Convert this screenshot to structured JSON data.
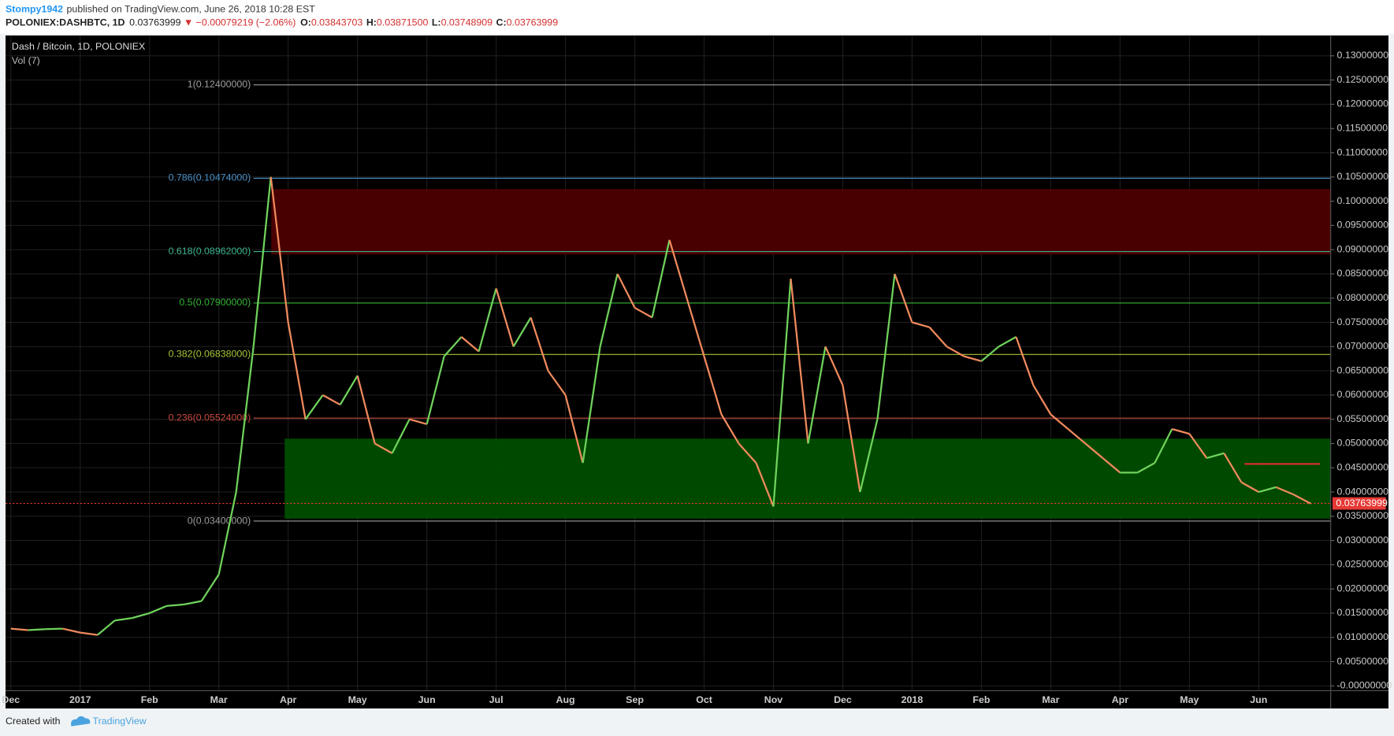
{
  "header": {
    "author": "Stompy1942",
    "published": "published on TradingView.com, June 26, 2018 10:28 EST",
    "symbol": "POLONIEX:DASHBTC, 1D",
    "last": "0.03763999",
    "change": "▼ −0.00079219 (−2.06%)",
    "o_key": "O:",
    "o": "0.03843703",
    "h_key": "H:",
    "h": "0.03871500",
    "l_key": "L:",
    "l": "0.03748909",
    "c_key": "C:",
    "c": "0.03763999"
  },
  "footer": {
    "created": "Created with",
    "brand": "TradingView"
  },
  "chart_data": {
    "type": "line",
    "title": "Dash / Bitcoin, 1D, POLONIEX",
    "subtitle": "Vol (7)",
    "up_color": "#6fd35c",
    "down_color": "#f08a5d",
    "categories": [
      "Dec",
      null,
      null,
      null,
      "2017",
      null,
      null,
      null,
      "Feb",
      null,
      null,
      null,
      "Mar",
      null,
      null,
      null,
      "Apr",
      null,
      null,
      null,
      "May",
      null,
      null,
      null,
      "Jun",
      null,
      null,
      null,
      "Jul",
      null,
      null,
      null,
      "Aug",
      null,
      null,
      null,
      "Sep",
      null,
      null,
      null,
      "Oct",
      null,
      null,
      null,
      "Nov",
      null,
      null,
      null,
      "Dec",
      null,
      null,
      null,
      "2018",
      null,
      null,
      null,
      "Feb",
      null,
      null,
      null,
      "Mar",
      null,
      null,
      null,
      "Apr",
      null,
      null,
      null,
      "May",
      null,
      null,
      null,
      "Jun",
      null,
      null,
      null
    ],
    "values": [
      0.0118,
      0.0115,
      0.0117,
      0.0118,
      0.011,
      0.0105,
      0.0135,
      0.014,
      0.015,
      0.0165,
      0.0168,
      0.0175,
      0.023,
      0.04,
      0.07,
      0.105,
      0.075,
      0.055,
      0.06,
      0.058,
      0.064,
      0.05,
      0.048,
      0.055,
      0.054,
      0.068,
      0.072,
      0.069,
      0.082,
      0.07,
      0.076,
      0.065,
      0.06,
      0.046,
      0.07,
      0.085,
      0.078,
      0.076,
      0.092,
      0.08,
      0.068,
      0.056,
      0.05,
      0.046,
      0.037,
      0.084,
      0.05,
      0.07,
      0.062,
      0.04,
      0.055,
      0.085,
      0.075,
      0.074,
      0.07,
      0.068,
      0.067,
      0.07,
      0.072,
      0.062,
      0.056,
      0.053,
      0.05,
      0.047,
      0.044,
      0.044,
      0.046,
      0.053,
      0.052,
      0.047,
      0.048,
      0.042,
      0.04,
      0.041,
      0.0395,
      0.0376
    ],
    "ylim": [
      -0.001,
      0.134
    ],
    "yticks": [
      {
        "value": 0.13,
        "label": "0.13000000"
      },
      {
        "value": 0.125,
        "label": "0.12500000"
      },
      {
        "value": 0.12,
        "label": "0.12000000"
      },
      {
        "value": 0.115,
        "label": "0.11500000"
      },
      {
        "value": 0.11,
        "label": "0.11000000"
      },
      {
        "value": 0.105,
        "label": "0.10500000"
      },
      {
        "value": 0.1,
        "label": "0.10000000"
      },
      {
        "value": 0.095,
        "label": "0.09500000"
      },
      {
        "value": 0.09,
        "label": "0.09000000"
      },
      {
        "value": 0.085,
        "label": "0.08500000"
      },
      {
        "value": 0.08,
        "label": "0.08000000"
      },
      {
        "value": 0.075,
        "label": "0.07500000"
      },
      {
        "value": 0.07,
        "label": "0.07000000"
      },
      {
        "value": 0.065,
        "label": "0.06500000"
      },
      {
        "value": 0.06,
        "label": "0.06000000"
      },
      {
        "value": 0.055,
        "label": "0.05500000"
      },
      {
        "value": 0.05,
        "label": "0.05000000"
      },
      {
        "value": 0.045,
        "label": "0.04500000"
      },
      {
        "value": 0.04,
        "label": "0.04000000"
      },
      {
        "value": 0.035,
        "label": "0.03500000"
      },
      {
        "value": 0.03,
        "label": "0.03000000"
      },
      {
        "value": 0.025,
        "label": "0.02500000"
      },
      {
        "value": 0.02,
        "label": "0.02000000"
      },
      {
        "value": 0.015,
        "label": "0.01500000"
      },
      {
        "value": 0.01,
        "label": "0.01000000"
      },
      {
        "value": 0.005,
        "label": "0.00500000"
      },
      {
        "value": 0,
        "label": "-0.00000000"
      }
    ],
    "grid": true,
    "fib": [
      {
        "value": 0.124,
        "label": "1(0.12400000)",
        "color": "#9e9e9e"
      },
      {
        "value": 0.10474,
        "label": "0.786(0.10474000)",
        "color": "#4a90c8"
      },
      {
        "value": 0.08962,
        "label": "0.618(0.08962000)",
        "color": "#3cb38f"
      },
      {
        "value": 0.079,
        "label": "0.5(0.07900000)",
        "color": "#33b534"
      },
      {
        "value": 0.06838,
        "label": "0.382(0.06838000)",
        "color": "#a5c536"
      },
      {
        "value": 0.05524,
        "label": "0.236(0.05524000)",
        "color": "#c9483e"
      },
      {
        "value": 0.034,
        "label": "0(0.03400000)",
        "color": "#9e9e9e"
      }
    ],
    "zones": [
      {
        "from": 0.089,
        "to": 0.1025,
        "color": "#4d0000"
      },
      {
        "from": 0.0345,
        "to": 0.051,
        "color": "#004d00"
      }
    ],
    "trend_line": {
      "value": 0.0458,
      "color": "#d32f2f"
    },
    "price_line": {
      "value": 0.03763999,
      "color": "#e53935"
    }
  }
}
